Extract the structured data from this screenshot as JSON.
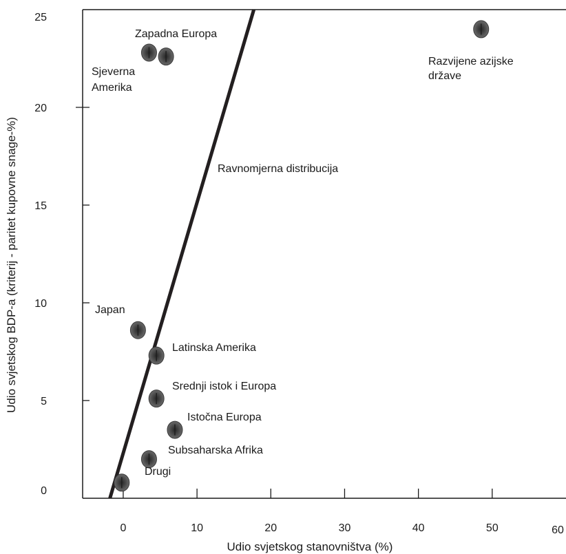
{
  "chart_data": {
    "type": "scatter",
    "title": "",
    "xlabel": "Udio svjetskog stanovništva (%)",
    "ylabel": "Udio svjetskog BDP-a (kriterij - paritet kupovne snage-%)",
    "xlim": [
      -5.5,
      60
    ],
    "ylim": [
      0,
      25
    ],
    "x_ticks": [
      {
        "value": 0,
        "label": "0"
      },
      {
        "value": 10,
        "label": "10"
      },
      {
        "value": 20,
        "label": "20"
      },
      {
        "value": 30,
        "label": "30"
      },
      {
        "value": 40,
        "label": "40"
      },
      {
        "value": 50,
        "label": "50"
      },
      {
        "value": 60,
        "label": "60"
      }
    ],
    "y_ticks": [
      {
        "value": 0,
        "label": "0"
      },
      {
        "value": 5,
        "label": "5"
      },
      {
        "value": 10,
        "label": "10"
      },
      {
        "value": 15,
        "label": "15"
      },
      {
        "value": 20,
        "label": "20"
      },
      {
        "value": 25,
        "label": "25"
      }
    ],
    "grid": false,
    "points": [
      {
        "label": "Zapadna Europa",
        "x": 5.8,
        "y": 22.6
      },
      {
        "label": "Sjeverna Amerika",
        "x": 3.5,
        "y": 22.8
      },
      {
        "label": "Razvijene azijske države",
        "x": 48.5,
        "y": 24.0
      },
      {
        "label": "Japan",
        "x": 2.0,
        "y": 8.6
      },
      {
        "label": "Latinska Amerika",
        "x": 4.5,
        "y": 7.3
      },
      {
        "label": "Srednji istok i Europa",
        "x": 4.5,
        "y": 5.1
      },
      {
        "label": "Istočna Europa",
        "x": 7.0,
        "y": 3.5
      },
      {
        "label": "Subsaharska Afrika",
        "x": 3.5,
        "y": 2.0
      },
      {
        "label": "Drugi",
        "x": -0.2,
        "y": 0.8
      }
    ],
    "reference_line": {
      "label": "Ravnomjerna distribucija",
      "from": [
        -1.8,
        0
      ],
      "to": [
        17.7,
        25
      ]
    },
    "colors": {
      "marker": "#555555",
      "line": "#231f20",
      "axis": "#1a1a1a"
    }
  }
}
